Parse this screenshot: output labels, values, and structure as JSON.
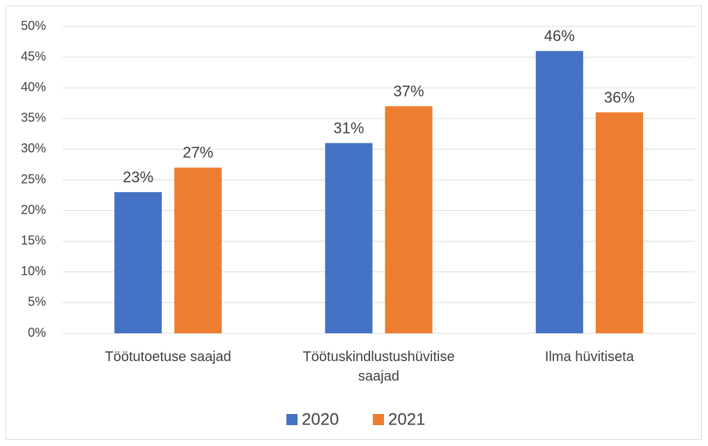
{
  "chart_data": {
    "type": "bar",
    "categories": [
      "Töötutoetuse saajad",
      "Töötuskindlustushüvitise saajad",
      "Ilma hüvitiseta"
    ],
    "series": [
      {
        "name": "2020",
        "color": "#4472c4",
        "values": [
          23,
          31,
          46
        ],
        "value_labels": [
          "23%",
          "31%",
          "46%"
        ]
      },
      {
        "name": "2021",
        "color": "#ed7d31",
        "values": [
          27,
          37,
          36
        ],
        "value_labels": [
          "27%",
          "37%",
          "36%"
        ]
      }
    ],
    "ylim": [
      0,
      50
    ],
    "yticks": [
      {
        "value": 0,
        "label": "0%"
      },
      {
        "value": 5,
        "label": "5%"
      },
      {
        "value": 10,
        "label": "10%"
      },
      {
        "value": 15,
        "label": "15%"
      },
      {
        "value": 20,
        "label": "20%"
      },
      {
        "value": 25,
        "label": "25%"
      },
      {
        "value": 30,
        "label": "30%"
      },
      {
        "value": 35,
        "label": "35%"
      },
      {
        "value": 40,
        "label": "40%"
      },
      {
        "value": 45,
        "label": "45%"
      },
      {
        "value": 50,
        "label": "50%"
      }
    ],
    "grid": true,
    "legend": "bottom"
  }
}
